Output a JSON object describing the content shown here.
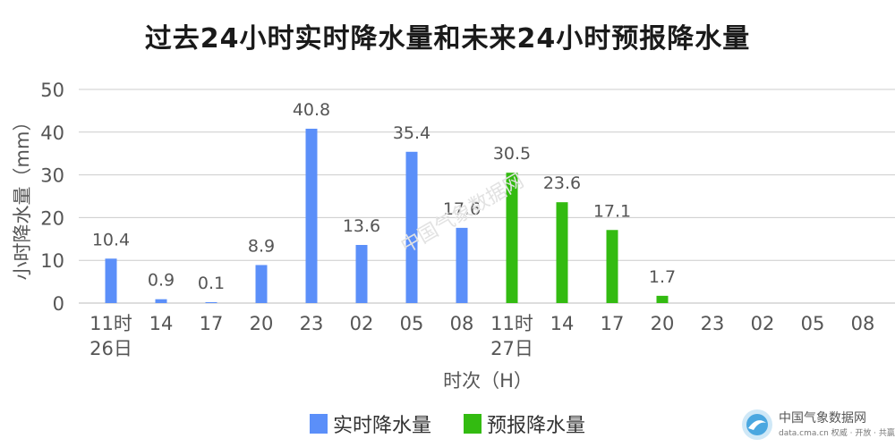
{
  "chart_data": {
    "type": "bar",
    "title": "过去24小时实时降水量和未来24小时预报降水量",
    "xlabel": "时次（H）",
    "ylabel": "小时降水量（mm）",
    "ylim": [
      0,
      50
    ],
    "yticks": [
      "0",
      "10",
      "20",
      "30",
      "40",
      "50"
    ],
    "grid": true,
    "legend_position": "bottom-center",
    "categories": [
      "11时 26日",
      "14",
      "17",
      "20",
      "23",
      "02",
      "05",
      "08",
      "11时 27日",
      "14",
      "17",
      "20",
      "23",
      "02",
      "05",
      "08"
    ],
    "series": [
      {
        "name": "实时降水量",
        "color": "#5b8ff9",
        "values": [
          10.4,
          0.9,
          0.1,
          8.9,
          40.8,
          13.6,
          35.4,
          17.6,
          null,
          null,
          null,
          null,
          null,
          null,
          null,
          null
        ],
        "labels": [
          "10.4",
          "0.9",
          "0.1",
          "8.9",
          "40.8",
          "13.6",
          "35.4",
          "17.6",
          null,
          null,
          null,
          null,
          null,
          null,
          null,
          null
        ]
      },
      {
        "name": "预报降水量",
        "color": "#33bb11",
        "values": [
          null,
          null,
          null,
          null,
          null,
          null,
          null,
          null,
          30.5,
          23.6,
          17.1,
          1.7,
          null,
          null,
          null,
          null
        ],
        "labels": [
          null,
          null,
          null,
          null,
          null,
          null,
          null,
          null,
          "30.5",
          "23.6",
          "17.1",
          "1.7",
          null,
          null,
          null,
          null
        ]
      }
    ]
  },
  "watermark": {
    "name": "中国气象数据网",
    "sub": "data.cma.cn 权威 · 开放 · 共赢",
    "overlay": "中国气象数据网"
  }
}
